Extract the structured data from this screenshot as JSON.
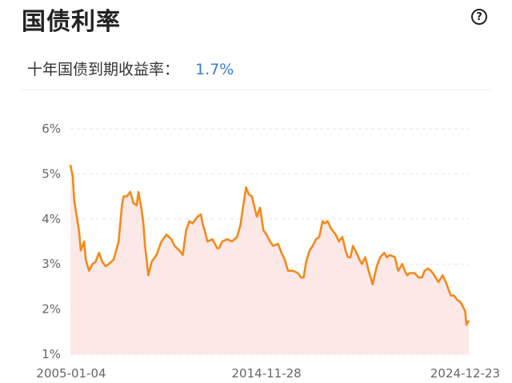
{
  "header": {
    "title": "国债利率",
    "help_icon": "question-circle-icon"
  },
  "summary": {
    "label": "十年国债到期收益率：",
    "value": "1.7%",
    "value_color": "#3b7dd8"
  },
  "chart_data": {
    "type": "area",
    "title": "",
    "xlabel": "",
    "ylabel": "",
    "ylim": [
      1,
      6
    ],
    "y_ticks": [
      1,
      2,
      3,
      4,
      5,
      6
    ],
    "y_tick_labels": [
      "1%",
      "2%",
      "3%",
      "4%",
      "5%",
      "6%"
    ],
    "x_range": [
      "2004-12-20",
      "2025-02-28"
    ],
    "x_ticks": [
      "2005-01-04",
      "2014-11-28",
      "2024-12-23"
    ],
    "grid": "horizontal-dashed",
    "line_color": "#f28a1a",
    "fill_color": "#fde4e4",
    "series": [
      {
        "x": [
          "2004-12-20",
          "2005-02-01",
          "2005-03-01",
          "2005-05-01",
          "2005-06-01",
          "2005-07-01",
          "2005-09-01",
          "2005-10-01",
          "2005-12-01",
          "2006-02-01",
          "2006-04-01",
          "2006-06-01",
          "2006-08-01",
          "2006-10-01",
          "2006-12-01",
          "2007-03-01",
          "2007-06-01",
          "2007-08-01",
          "2007-09-01",
          "2007-11-01",
          "2008-01-01",
          "2008-03-01",
          "2008-05-01",
          "2008-06-01",
          "2008-08-01",
          "2008-09-01",
          "2008-10-01",
          "2008-11-01",
          "2008-12-01",
          "2009-02-01",
          "2009-05-01",
          "2009-08-01",
          "2009-11-01",
          "2010-02-01",
          "2010-04-01",
          "2010-07-01",
          "2010-09-01",
          "2010-11-01",
          "2011-01-01",
          "2011-03-01",
          "2011-06-01",
          "2011-08-01",
          "2011-09-01",
          "2011-11-01",
          "2011-12-01",
          "2012-03-01",
          "2012-06-01",
          "2012-07-01",
          "2012-09-01",
          "2012-12-01",
          "2013-03-01",
          "2013-06-01",
          "2013-08-01",
          "2013-10-01",
          "2013-11-15",
          "2014-01-01",
          "2014-03-01",
          "2014-06-01",
          "2014-08-01",
          "2014-10-01",
          "2014-11-28",
          "2015-02-01",
          "2015-04-01",
          "2015-07-01",
          "2015-09-01",
          "2015-11-01",
          "2016-01-01",
          "2016-04-01",
          "2016-07-01",
          "2016-09-01",
          "2016-10-15",
          "2016-12-01",
          "2017-02-01",
          "2017-04-01",
          "2017-06-01",
          "2017-08-01",
          "2017-10-01",
          "2017-11-15",
          "2018-01-01",
          "2018-03-01",
          "2018-06-01",
          "2018-08-01",
          "2018-10-01",
          "2018-12-01",
          "2019-01-15",
          "2019-03-01",
          "2019-04-15",
          "2019-06-01",
          "2019-08-15",
          "2019-10-01",
          "2019-12-01",
          "2020-02-01",
          "2020-04-15",
          "2020-05-15",
          "2020-07-01",
          "2020-09-01",
          "2020-11-15",
          "2021-01-01",
          "2021-03-01",
          "2021-06-01",
          "2021-08-01",
          "2021-10-15",
          "2021-12-01",
          "2022-01-15",
          "2022-03-01",
          "2022-06-01",
          "2022-08-15",
          "2022-10-15",
          "2022-12-01",
          "2023-02-01",
          "2023-04-01",
          "2023-06-01",
          "2023-08-15",
          "2023-11-01",
          "2024-01-01",
          "2024-02-15",
          "2024-04-01",
          "2024-06-01",
          "2024-08-01",
          "2024-10-01",
          "2024-11-15",
          "2024-12-23",
          "2025-01-15",
          "2025-02-28"
        ],
        "values": [
          5.2,
          4.95,
          4.4,
          3.95,
          3.7,
          3.3,
          3.5,
          3.1,
          2.85,
          3.0,
          3.05,
          3.25,
          3.05,
          2.95,
          3.0,
          3.1,
          3.5,
          4.3,
          4.5,
          4.5,
          4.6,
          4.35,
          4.3,
          4.6,
          4.2,
          3.9,
          3.4,
          3.1,
          2.75,
          3.05,
          3.2,
          3.5,
          3.65,
          3.55,
          3.4,
          3.3,
          3.2,
          3.75,
          3.95,
          3.9,
          4.05,
          4.1,
          3.9,
          3.65,
          3.5,
          3.55,
          3.35,
          3.35,
          3.5,
          3.55,
          3.5,
          3.6,
          3.85,
          4.35,
          4.7,
          4.55,
          4.5,
          4.05,
          4.25,
          3.75,
          3.65,
          3.5,
          3.4,
          3.45,
          3.25,
          3.1,
          2.85,
          2.85,
          2.8,
          2.7,
          2.7,
          3.05,
          3.3,
          3.4,
          3.55,
          3.6,
          3.95,
          3.9,
          3.95,
          3.8,
          3.65,
          3.5,
          3.6,
          3.3,
          3.15,
          3.15,
          3.4,
          3.3,
          3.1,
          3.0,
          3.15,
          2.85,
          2.55,
          2.7,
          2.95,
          3.15,
          3.25,
          3.15,
          3.2,
          3.15,
          2.85,
          3.0,
          2.85,
          2.75,
          2.8,
          2.8,
          2.7,
          2.7,
          2.85,
          2.9,
          2.85,
          2.75,
          2.6,
          2.75,
          2.6,
          2.45,
          2.3,
          2.3,
          2.2,
          2.15,
          2.05,
          1.95,
          1.65,
          1.75
        ]
      }
    ]
  }
}
